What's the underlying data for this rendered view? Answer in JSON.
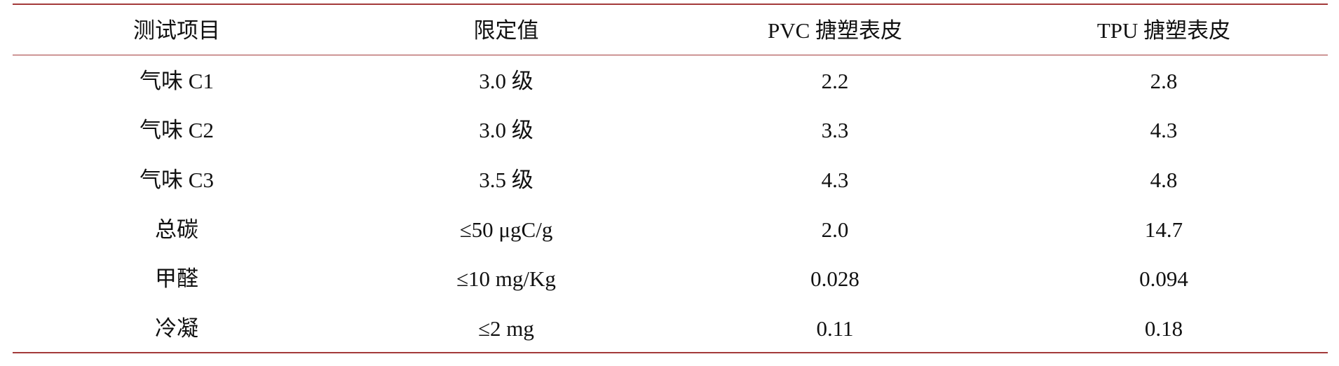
{
  "table": {
    "header": [
      "测试项目",
      "限定值",
      "PVC 搪塑表皮",
      "TPU 搪塑表皮"
    ],
    "rows": [
      [
        "气味 C1",
        "3.0 级",
        "2.2",
        "2.8"
      ],
      [
        "气味 C2",
        "3.0 级",
        "3.3",
        "4.3"
      ],
      [
        "气味 C3",
        "3.5 级",
        "4.3",
        "4.8"
      ],
      [
        "总碳",
        "≤50 μgC/g",
        "2.0",
        "14.7"
      ],
      [
        "甲醛",
        "≤10 mg/Kg",
        "0.028",
        "0.094"
      ],
      [
        "冷凝",
        "≤2 mg",
        "0.11",
        "0.18"
      ]
    ]
  }
}
